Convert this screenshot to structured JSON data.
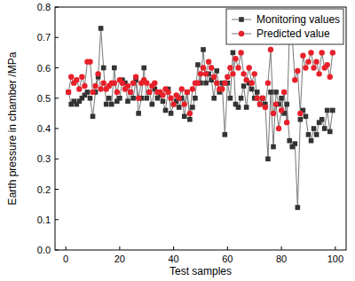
{
  "chart_data": {
    "type": "line",
    "x_label": "Test samples",
    "y_label": "Earth pressure in chamber /MPa",
    "x": [
      1,
      2,
      3,
      4,
      5,
      6,
      7,
      8,
      9,
      10,
      11,
      12,
      13,
      14,
      15,
      16,
      17,
      18,
      19,
      20,
      21,
      22,
      23,
      24,
      25,
      26,
      27,
      28,
      29,
      30,
      31,
      32,
      33,
      34,
      35,
      36,
      37,
      38,
      39,
      40,
      41,
      42,
      43,
      44,
      45,
      46,
      47,
      48,
      49,
      50,
      51,
      52,
      53,
      54,
      55,
      56,
      57,
      58,
      59,
      60,
      61,
      62,
      63,
      64,
      65,
      66,
      67,
      68,
      69,
      70,
      71,
      72,
      73,
      74,
      75,
      76,
      77,
      78,
      79,
      80,
      81,
      82,
      83,
      84,
      85,
      86,
      87,
      88,
      89,
      90,
      91,
      92,
      93,
      94,
      95,
      96,
      97,
      98,
      99
    ],
    "series": [
      {
        "name": "Monitoring values",
        "color": "#333333",
        "marker": "square",
        "line_style": "solid",
        "values": [
          0.52,
          0.48,
          0.49,
          0.48,
          0.49,
          0.5,
          0.51,
          0.52,
          0.5,
          0.44,
          0.52,
          0.57,
          0.73,
          0.6,
          0.48,
          0.5,
          0.48,
          0.6,
          0.49,
          0.5,
          0.56,
          0.55,
          0.49,
          0.52,
          0.5,
          0.56,
          0.45,
          0.5,
          0.6,
          0.5,
          0.52,
          0.48,
          0.53,
          0.5,
          0.51,
          0.49,
          0.46,
          0.53,
          0.45,
          0.48,
          0.49,
          0.47,
          0.5,
          0.44,
          0.52,
          0.43,
          0.47,
          0.5,
          0.61,
          0.55,
          0.66,
          0.55,
          0.58,
          0.56,
          0.5,
          0.59,
          0.52,
          0.55,
          0.38,
          0.55,
          0.5,
          0.65,
          0.48,
          0.47,
          0.5,
          0.54,
          0.47,
          0.55,
          0.53,
          0.5,
          0.52,
          0.48,
          0.5,
          0.48,
          0.3,
          0.52,
          0.34,
          0.52,
          0.48,
          0.5,
          0.45,
          0.48,
          0.36,
          0.34,
          0.35,
          0.14,
          0.43,
          0.46,
          0.44,
          0.38,
          0.36,
          0.4,
          0.38,
          0.42,
          0.43,
          0.4,
          0.46,
          0.39,
          0.46
        ]
      },
      {
        "name": "Predicted value",
        "color": "#e8202a",
        "marker": "circle",
        "line_style": "solid",
        "values": [
          0.52,
          0.57,
          0.55,
          0.56,
          0.53,
          0.57,
          0.54,
          0.62,
          0.62,
          0.52,
          0.54,
          0.58,
          0.53,
          0.55,
          0.53,
          0.54,
          0.55,
          0.55,
          0.52,
          0.56,
          0.55,
          0.53,
          0.54,
          0.52,
          0.55,
          0.57,
          0.5,
          0.55,
          0.56,
          0.55,
          0.52,
          0.54,
          0.55,
          0.52,
          0.52,
          0.51,
          0.53,
          0.52,
          0.5,
          0.48,
          0.51,
          0.5,
          0.53,
          0.48,
          0.52,
          0.45,
          0.53,
          0.55,
          0.55,
          0.58,
          0.6,
          0.58,
          0.62,
          0.6,
          0.57,
          0.55,
          0.53,
          0.53,
          0.55,
          0.57,
          0.6,
          0.58,
          0.63,
          0.6,
          0.65,
          0.58,
          0.56,
          0.6,
          0.55,
          0.58,
          0.5,
          0.48,
          0.5,
          0.47,
          0.55,
          0.66,
          0.45,
          0.48,
          0.4,
          0.46,
          0.52,
          0.42,
          0.72,
          0.7,
          0.56,
          0.59,
          0.45,
          0.64,
          0.6,
          0.62,
          0.65,
          0.6,
          0.62,
          0.58,
          0.65,
          0.6,
          0.61,
          0.57,
          0.65
        ]
      }
    ],
    "xlim": [
      -4,
      104
    ],
    "xticks": [
      0,
      20,
      40,
      60,
      80,
      100
    ],
    "ylim": [
      0,
      0.8
    ],
    "yticks": [
      {
        "value": 0,
        "label": "0.0"
      },
      0.1,
      0.2,
      0.3,
      0.4,
      0.5,
      0.6,
      0.7,
      0.8
    ],
    "grid": false,
    "legend": "upper right"
  }
}
